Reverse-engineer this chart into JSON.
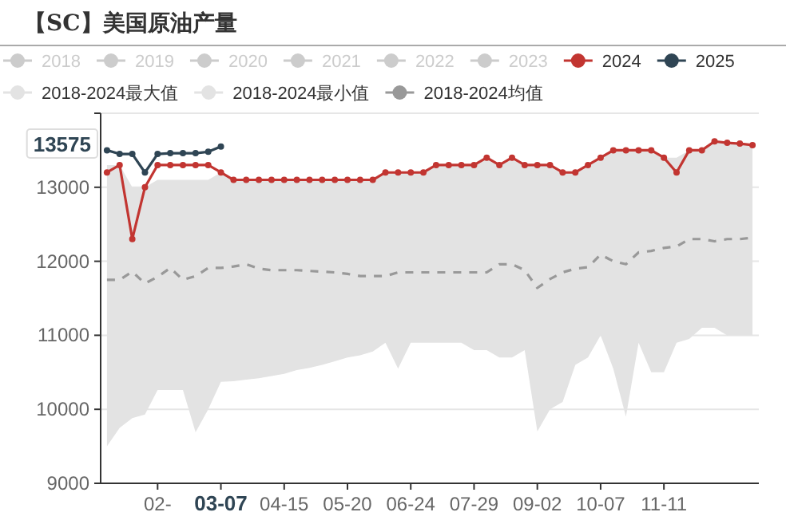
{
  "chart_data": {
    "type": "line",
    "title": "【SC】美国原油产量",
    "categories": [
      null,
      null,
      null,
      null,
      "02-",
      null,
      null,
      null,
      null,
      "03-07",
      null,
      null,
      null,
      null,
      "04-15",
      null,
      null,
      null,
      null,
      "05-20",
      null,
      null,
      null,
      null,
      "06-24",
      null,
      null,
      null,
      null,
      "07-29",
      null,
      null,
      null,
      null,
      "09-02",
      null,
      null,
      null,
      null,
      "10-07",
      null,
      null,
      null,
      null,
      "11-11",
      null,
      null,
      null,
      null,
      null,
      null,
      null
    ],
    "ylim": [
      9000,
      14000
    ],
    "yticks": [
      9000,
      10000,
      11000,
      12000,
      13000,
      {
        "value": 14000,
        "label": null
      }
    ],
    "grid": "y",
    "legend": "top",
    "marker": "circle",
    "annotations": [
      "13575"
    ],
    "series": [
      {
        "name": "2018",
        "color": "#cccccc",
        "values": [
          null,
          null,
          null,
          null,
          null,
          null,
          null,
          null,
          null,
          null,
          null,
          null,
          null,
          null,
          null,
          null,
          null,
          null,
          null,
          null,
          null,
          null,
          null,
          null,
          null,
          null,
          null,
          null,
          null,
          null,
          null,
          null,
          null,
          null,
          null,
          null,
          null,
          null,
          null,
          null,
          null,
          null,
          null,
          null,
          null,
          null,
          null,
          null,
          null,
          null,
          null,
          null
        ]
      },
      {
        "name": "2019",
        "color": "#cccccc",
        "values": [
          null,
          null,
          null,
          null,
          null,
          null,
          null,
          null,
          null,
          null,
          null,
          null,
          null,
          null,
          null,
          null,
          null,
          null,
          null,
          null,
          null,
          null,
          null,
          null,
          null,
          null,
          null,
          null,
          null,
          null,
          null,
          null,
          null,
          null,
          null,
          null,
          null,
          null,
          null,
          null,
          null,
          null,
          null,
          null,
          null,
          null,
          null,
          null,
          null,
          null,
          null,
          null
        ]
      },
      {
        "name": "2020",
        "color": "#cccccc",
        "values": [
          null,
          null,
          null,
          null,
          null,
          null,
          null,
          null,
          null,
          null,
          null,
          null,
          null,
          null,
          null,
          null,
          null,
          null,
          null,
          null,
          null,
          null,
          null,
          null,
          null,
          null,
          null,
          null,
          null,
          null,
          null,
          null,
          null,
          null,
          null,
          null,
          null,
          null,
          null,
          null,
          null,
          null,
          null,
          null,
          null,
          null,
          null,
          null,
          null,
          null,
          null,
          null
        ]
      },
      {
        "name": "2021",
        "color": "#cccccc",
        "values": [
          null,
          null,
          null,
          null,
          null,
          null,
          null,
          null,
          null,
          null,
          null,
          null,
          null,
          null,
          null,
          null,
          null,
          null,
          null,
          null,
          null,
          null,
          null,
          null,
          null,
          null,
          null,
          null,
          null,
          null,
          null,
          null,
          null,
          null,
          null,
          null,
          null,
          null,
          null,
          null,
          null,
          null,
          null,
          null,
          null,
          null,
          null,
          null,
          null,
          null,
          null,
          null
        ]
      },
      {
        "name": "2022",
        "color": "#cccccc",
        "values": [
          null,
          null,
          null,
          null,
          null,
          null,
          null,
          null,
          null,
          null,
          null,
          null,
          null,
          null,
          null,
          null,
          null,
          null,
          null,
          null,
          null,
          null,
          null,
          null,
          null,
          null,
          null,
          null,
          null,
          null,
          null,
          null,
          null,
          null,
          null,
          null,
          null,
          null,
          null,
          null,
          null,
          null,
          null,
          null,
          null,
          null,
          null,
          null,
          null,
          null,
          null,
          null
        ]
      },
      {
        "name": "2023",
        "color": "#cccccc",
        "values": [
          null,
          null,
          null,
          null,
          null,
          null,
          null,
          null,
          null,
          null,
          null,
          null,
          null,
          null,
          null,
          null,
          null,
          null,
          null,
          null,
          null,
          null,
          null,
          null,
          null,
          null,
          null,
          null,
          null,
          null,
          null,
          null,
          null,
          null,
          null,
          null,
          null,
          null,
          null,
          null,
          null,
          null,
          null,
          null,
          null,
          null,
          null,
          null,
          null,
          null,
          null,
          null
        ]
      },
      {
        "name": "2024",
        "color": "#c23531",
        "values": [
          13200,
          13300,
          12300,
          13000,
          13300,
          13300,
          13300,
          13300,
          13300,
          13200,
          13100,
          13100,
          13100,
          13100,
          13100,
          13100,
          13100,
          13100,
          13100,
          13100,
          13100,
          13100,
          13200,
          13200,
          13200,
          13200,
          13300,
          13300,
          13300,
          13300,
          13400,
          13300,
          13400,
          13300,
          13300,
          13300,
          13200,
          13200,
          13300,
          13400,
          13500,
          13500,
          13500,
          13500,
          13400,
          13200,
          13500,
          13500,
          13620,
          13600,
          13590,
          13570
        ]
      },
      {
        "name": "2025",
        "color": "#2f4554",
        "values": [
          13500,
          13450,
          13450,
          13200,
          13450,
          13460,
          13460,
          13460,
          13480,
          13550,
          null,
          null,
          null,
          null,
          null,
          null,
          null,
          null,
          null,
          null,
          null,
          null,
          null,
          null,
          null,
          null,
          null,
          null,
          null,
          null,
          null,
          null,
          null,
          null,
          null,
          null,
          null,
          null,
          null,
          null,
          null,
          null,
          null,
          null,
          null,
          null,
          null,
          null,
          null,
          null,
          null,
          null
        ]
      },
      {
        "name": "2018-2024最大值",
        "color": "#e3e3e3",
        "values": [
          null,
          null,
          null,
          null,
          null,
          null,
          null,
          null,
          null,
          null,
          null,
          null,
          null,
          null,
          null,
          null,
          null,
          null,
          null,
          null,
          null,
          null,
          null,
          null,
          null,
          null,
          null,
          null,
          null,
          null,
          null,
          null,
          null,
          null,
          null,
          null,
          null,
          null,
          null,
          null,
          null,
          null,
          null,
          null,
          null,
          null,
          null,
          null,
          null,
          null,
          null,
          null
        ]
      },
      {
        "name": "2018-2024最小值",
        "color": "#e3e3e3",
        "values": [
          null,
          null,
          null,
          null,
          null,
          null,
          null,
          null,
          null,
          null,
          null,
          null,
          null,
          null,
          null,
          null,
          null,
          null,
          null,
          null,
          null,
          null,
          null,
          null,
          null,
          null,
          null,
          null,
          null,
          null,
          null,
          null,
          null,
          null,
          null,
          null,
          null,
          null,
          null,
          null,
          null,
          null,
          null,
          null,
          null,
          null,
          null,
          null,
          null,
          null,
          null,
          null
        ]
      },
      {
        "name": "2018-2024均值",
        "color": "#999999",
        "line_style": "dashed",
        "marker": "none",
        "values": [
          11750,
          11750,
          11860,
          11700,
          11790,
          11910,
          11750,
          11800,
          11910,
          11910,
          11930,
          11960,
          11900,
          11880,
          11880,
          11880,
          11870,
          11860,
          11850,
          11830,
          11800,
          11800,
          11800,
          11850,
          11850,
          11850,
          11850,
          11850,
          11850,
          11850,
          11850,
          11960,
          11960,
          11880,
          11640,
          11760,
          11850,
          11900,
          11920,
          12090,
          12000,
          11960,
          12120,
          12140,
          12180,
          12200,
          12300,
          12300,
          12270,
          12300,
          12300,
          12320
        ],
        "upper": [
          13300,
          13300,
          13000,
          13000,
          13100,
          13100,
          13100,
          13100,
          13100,
          13200,
          13100,
          13100,
          13100,
          13100,
          13100,
          13100,
          13100,
          13100,
          13100,
          13100,
          13100,
          13100,
          13200,
          13200,
          13200,
          13200,
          13300,
          13300,
          13300,
          13300,
          13400,
          13300,
          13400,
          13300,
          13300,
          13300,
          13200,
          13200,
          13300,
          13400,
          13500,
          13500,
          13500,
          13500,
          13400,
          13400,
          13500,
          13500,
          13620,
          13600,
          13590,
          13570
        ],
        "lower": [
          9500,
          9750,
          9880,
          9930,
          10260,
          10260,
          10260,
          9690,
          10000,
          10370,
          10380,
          10400,
          10420,
          10450,
          10480,
          10530,
          10560,
          10600,
          10650,
          10700,
          10730,
          10780,
          10900,
          10550,
          10900,
          10900,
          10900,
          10900,
          10900,
          10800,
          10800,
          10700,
          10700,
          10800,
          9700,
          10000,
          10100,
          10600,
          10700,
          11000,
          10550,
          9900,
          10900,
          10500,
          10500,
          10900,
          10950,
          11100,
          11100,
          11000,
          11000,
          11000
        ]
      }
    ]
  }
}
